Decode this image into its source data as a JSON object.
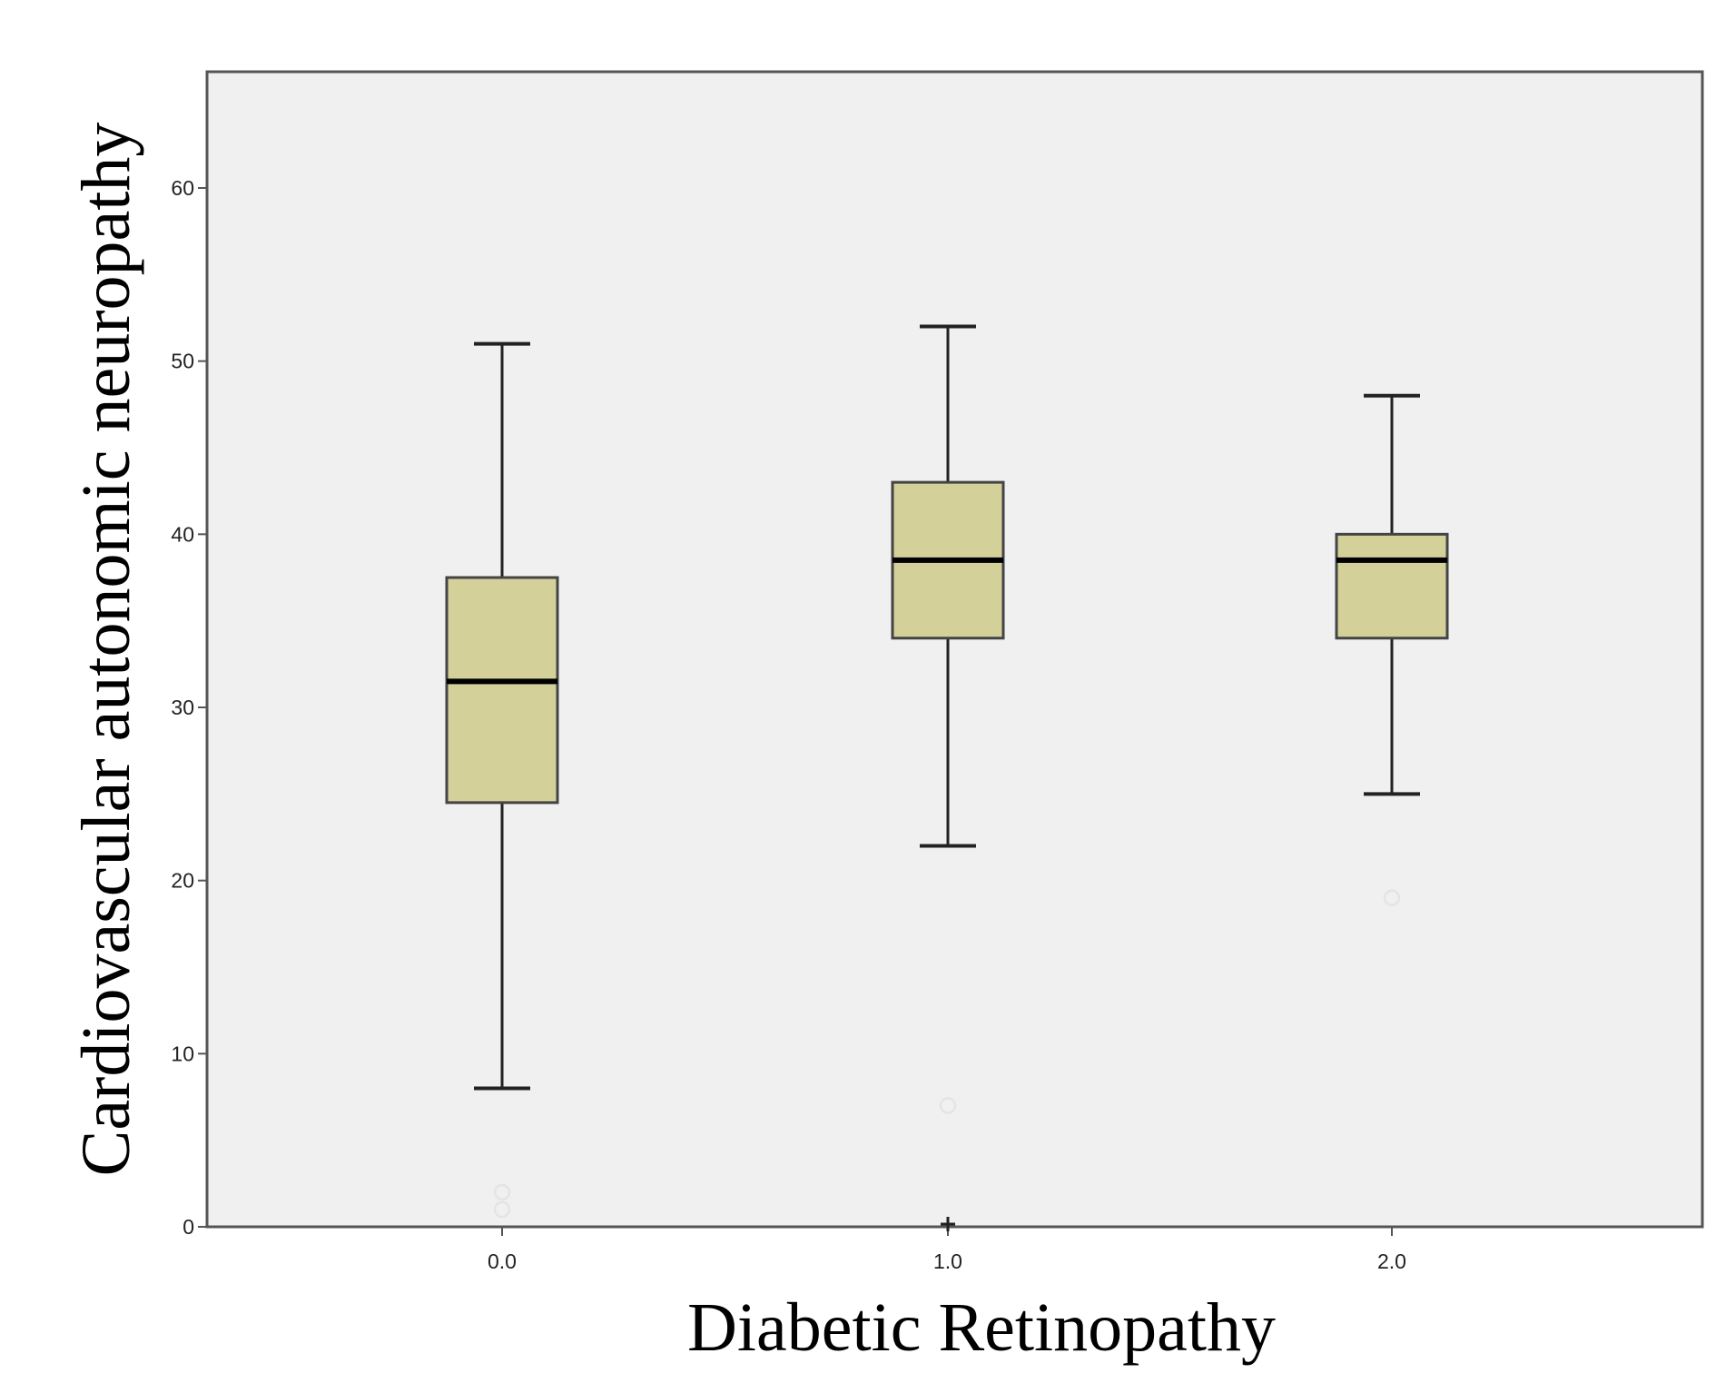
{
  "chart_data": {
    "type": "boxplot",
    "title": "",
    "xlabel": "Diabetic Retinopathy",
    "ylabel": "Cardiovascular autonomic neuropathy",
    "ylim": [
      0,
      66.5
    ],
    "yticks": [
      0,
      10,
      20,
      30,
      40,
      50,
      60
    ],
    "ytick_labels": [
      "0",
      "10",
      "20",
      "30",
      "40",
      "50",
      "60"
    ],
    "categories": [
      "0.0",
      "1.0",
      "2.0"
    ],
    "grid": false,
    "boxes": [
      {
        "category": "0.0",
        "whisker_low": 8,
        "q1": 24.5,
        "median": 31.5,
        "q3": 37.5,
        "whisker_high": 51,
        "outliers": [
          1,
          2
        ],
        "extremes": []
      },
      {
        "category": "1.0",
        "whisker_low": 22,
        "q1": 34,
        "median": 38.5,
        "q3": 43,
        "whisker_high": 52,
        "outliers": [
          7
        ],
        "extremes": [
          0
        ]
      },
      {
        "category": "2.0",
        "whisker_low": 25,
        "q1": 34,
        "median": 38.5,
        "q3": 40,
        "whisker_high": 48,
        "outliers": [
          19
        ],
        "extremes": []
      }
    ],
    "colors": {
      "plot_background": "#f0f0f0",
      "box_fill": "#d4d09a",
      "box_stroke": "#444444",
      "median": "#000000",
      "whisker": "#222222",
      "outlier": "#e4e4e4",
      "frame": "#555555"
    }
  }
}
